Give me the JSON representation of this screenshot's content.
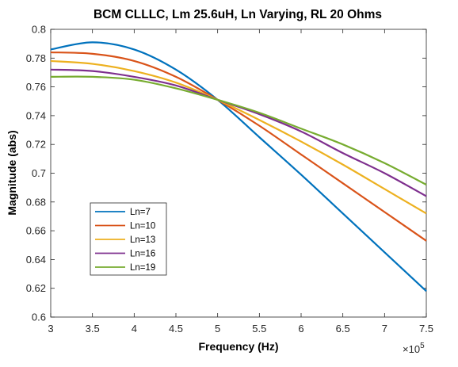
{
  "chart_data": {
    "type": "line",
    "title": "BCM CLLLC, Lm 25.6uH, Ln Varying, RL 20 Ohms",
    "xlabel": "Frequency  (Hz)",
    "ylabel": "Magnitude (abs)",
    "x_exponent_label": "×10",
    "x_exponent_power": "5",
    "xlim": [
      3,
      7.5
    ],
    "ylim": [
      0.6,
      0.8
    ],
    "x_ticks": [
      3,
      3.5,
      4,
      4.5,
      5,
      5.5,
      6,
      6.5,
      7,
      7.5
    ],
    "x_tick_labels": [
      "3",
      "3.5",
      "4",
      "4.5",
      "5",
      "5.5",
      "6",
      "6.5",
      "7",
      "7.5"
    ],
    "y_ticks": [
      0.6,
      0.62,
      0.64,
      0.66,
      0.68,
      0.7,
      0.72,
      0.74,
      0.76,
      0.78,
      0.8
    ],
    "y_tick_labels": [
      "0.6",
      "0.62",
      "0.64",
      "0.66",
      "0.68",
      "0.7",
      "0.72",
      "0.74",
      "0.76",
      "0.78",
      "0.8"
    ],
    "grid": false,
    "legend_position": "lower-left",
    "x": [
      3,
      3.5,
      4,
      4.5,
      5,
      5.5,
      6,
      6.5,
      7,
      7.5
    ],
    "series": [
      {
        "name": "Ln=7",
        "color": "#0072BD",
        "values": [
          0.786,
          0.791,
          0.786,
          0.772,
          0.751,
          0.725,
          0.699,
          0.672,
          0.645,
          0.618
        ]
      },
      {
        "name": "Ln=10",
        "color": "#D95319",
        "values": [
          0.784,
          0.783,
          0.778,
          0.767,
          0.751,
          0.733,
          0.713,
          0.693,
          0.673,
          0.653
        ]
      },
      {
        "name": "Ln=13",
        "color": "#EDB120",
        "values": [
          0.778,
          0.776,
          0.771,
          0.763,
          0.751,
          0.737,
          0.722,
          0.706,
          0.689,
          0.672
        ]
      },
      {
        "name": "Ln=16",
        "color": "#7E2F8E",
        "values": [
          0.772,
          0.771,
          0.767,
          0.761,
          0.751,
          0.741,
          0.729,
          0.714,
          0.7,
          0.684
        ]
      },
      {
        "name": "Ln=19",
        "color": "#77AC30",
        "values": [
          0.767,
          0.767,
          0.765,
          0.759,
          0.751,
          0.742,
          0.731,
          0.72,
          0.707,
          0.692
        ]
      }
    ]
  }
}
